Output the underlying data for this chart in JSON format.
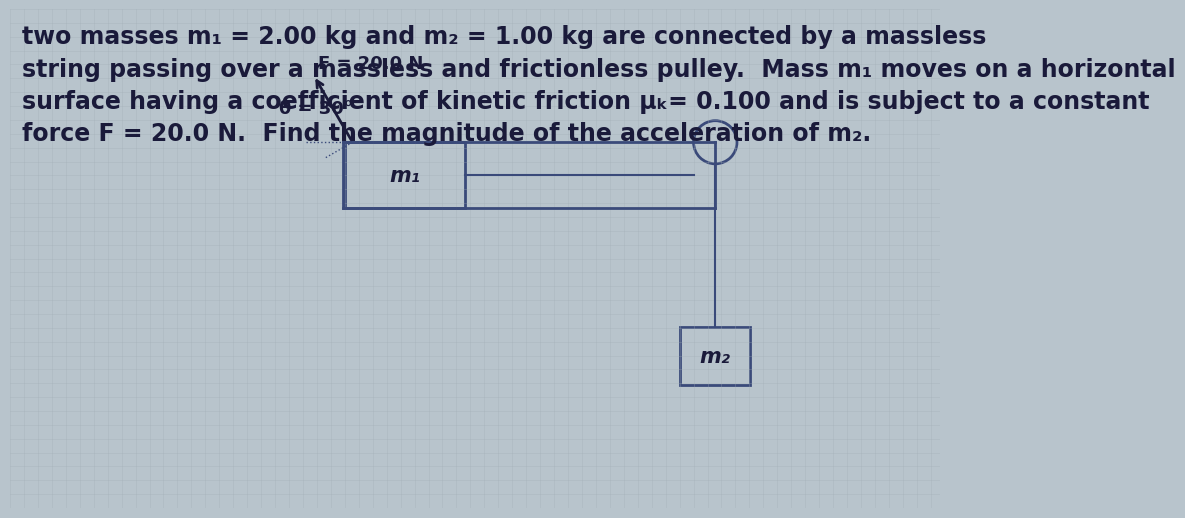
{
  "bg_color": "#b8c4cc",
  "grid_color": "#a0adb5",
  "text_color": "#1a1a3a",
  "diagram_color": "#3a4a7a",
  "title_lines": [
    "two masses m₁ = 2.00 kg and m₂ = 1.00 kg are connected by a massless",
    "string passing over a massless and frictionless pulley.  Mass m₁ moves on a horizontal",
    "surface having a coefficient of kinetic friction μₖ= 0.100 and is subject to a constant",
    "force F = 20.0 N.  Find the magnitude of the acceleration of m₂."
  ],
  "force_label": "F = 20.0 N",
  "theta_label": "θ = 30°",
  "m1_label": "m₁",
  "m2_label": "m₂",
  "font_size_title": 17,
  "font_size_diagram": 15,
  "font_size_label": 13
}
